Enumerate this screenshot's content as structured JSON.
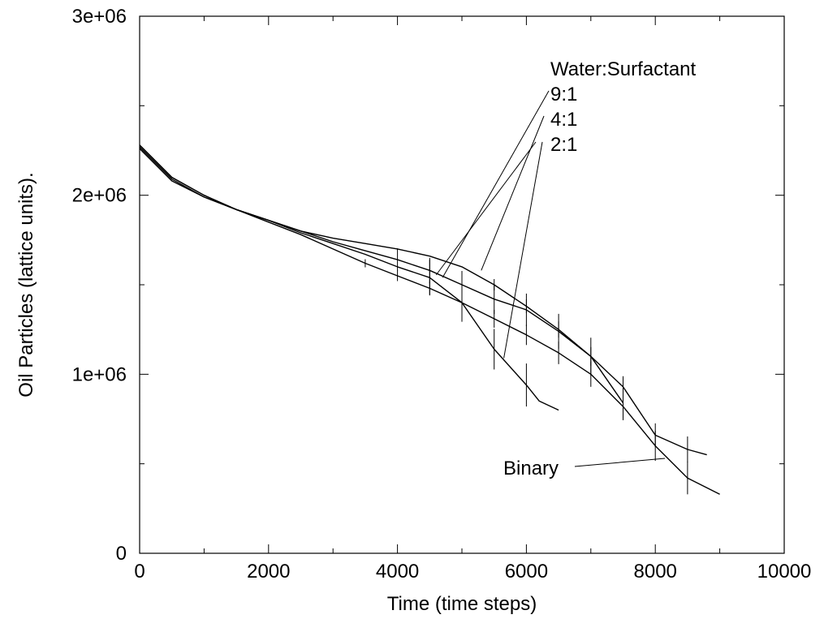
{
  "chart_data": {
    "type": "line",
    "title": "",
    "xlabel": "Time (time steps)",
    "ylabel": "Oil Particles (lattice units).",
    "xlim": [
      0,
      10000
    ],
    "ylim": [
      0,
      3000000
    ],
    "xticks": [
      0,
      2000,
      4000,
      6000,
      8000,
      10000
    ],
    "xtick_labels": [
      "0",
      "2000",
      "4000",
      "6000",
      "8000",
      "10000"
    ],
    "yticks": [
      0,
      1000000,
      2000000,
      3000000
    ],
    "ytick_labels": [
      "0",
      "1e+06",
      "2e+06",
      "3e+06"
    ],
    "grid": false,
    "series": [
      {
        "x": [
          0,
          500,
          1000,
          1500,
          2000,
          2500,
          3000,
          3500,
          4000,
          4500,
          5000,
          5500,
          6000,
          6500,
          7000,
          7500,
          8000,
          8500,
          9000
        ],
        "y": [
          2280000,
          2100000,
          2000000,
          1920000,
          1850000,
          1780000,
          1700000,
          1620000,
          1550000,
          1480000,
          1400000,
          1310000,
          1220000,
          1120000,
          1000000,
          820000,
          600000,
          420000,
          330000
        ]
      },
      {
        "x": [
          0,
          500,
          1000,
          1500,
          2000,
          2500,
          3000,
          3500,
          4000,
          4500,
          5000,
          5500,
          6000,
          6500,
          7000,
          7500,
          8000,
          8500,
          8800
        ],
        "y": [
          2260000,
          2080000,
          1990000,
          1920000,
          1860000,
          1800000,
          1760000,
          1730000,
          1700000,
          1660000,
          1600000,
          1500000,
          1380000,
          1250000,
          1100000,
          930000,
          660000,
          580000,
          550000
        ]
      },
      {
        "x": [
          0,
          500,
          1000,
          1500,
          2000,
          2500,
          3000,
          3500,
          4000,
          4500,
          5000,
          5500,
          6000,
          6500,
          7000,
          7500
        ],
        "y": [
          2270000,
          2090000,
          1990000,
          1920000,
          1860000,
          1800000,
          1740000,
          1690000,
          1640000,
          1580000,
          1500000,
          1420000,
          1360000,
          1240000,
          1100000,
          840000
        ]
      },
      {
        "x": [
          0,
          500,
          1000,
          1500,
          2000,
          2500,
          3000,
          3500,
          4000,
          4500,
          5000,
          5500,
          6000,
          6200,
          6500
        ],
        "y": [
          2280000,
          2100000,
          2000000,
          1920000,
          1860000,
          1790000,
          1730000,
          1670000,
          1600000,
          1540000,
          1400000,
          1140000,
          940000,
          850000,
          800000
        ]
      }
    ],
    "annotations": {
      "legend_title": "Water:Surfactant",
      "labels": [
        "9:1",
        "4:1",
        "2:1",
        "Binary"
      ]
    }
  }
}
